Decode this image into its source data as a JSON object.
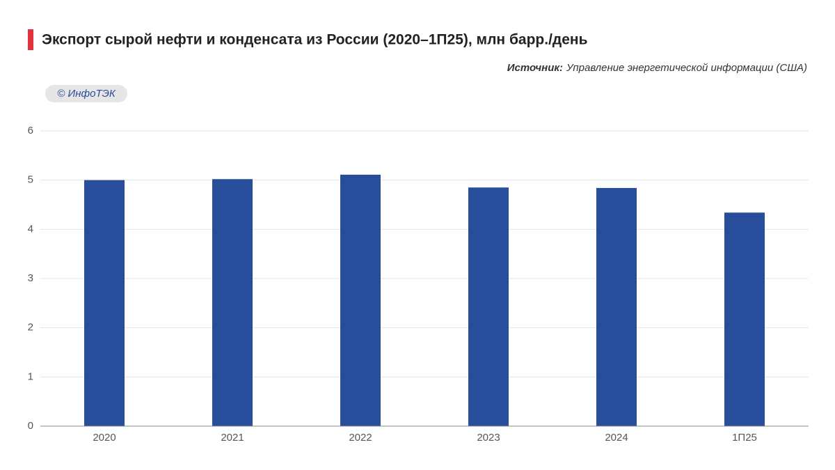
{
  "chart_data": {
    "type": "bar",
    "title": "Экспорт сырой нефти и конденсата из России (2020–1П25), млн барр./день",
    "source_label": "Источник:",
    "source": "Управление энергетической информации (США)",
    "watermark": "© ИнфоТЭК",
    "categories": [
      "2020",
      "2021",
      "2022",
      "2023",
      "2024",
      "1П25"
    ],
    "values": [
      5.0,
      5.02,
      5.11,
      4.85,
      4.84,
      4.34
    ],
    "color": "#284d9b",
    "ylim": [
      0,
      6
    ],
    "yticks": [
      0,
      1,
      2,
      3,
      4,
      5,
      6
    ],
    "grid": true
  }
}
